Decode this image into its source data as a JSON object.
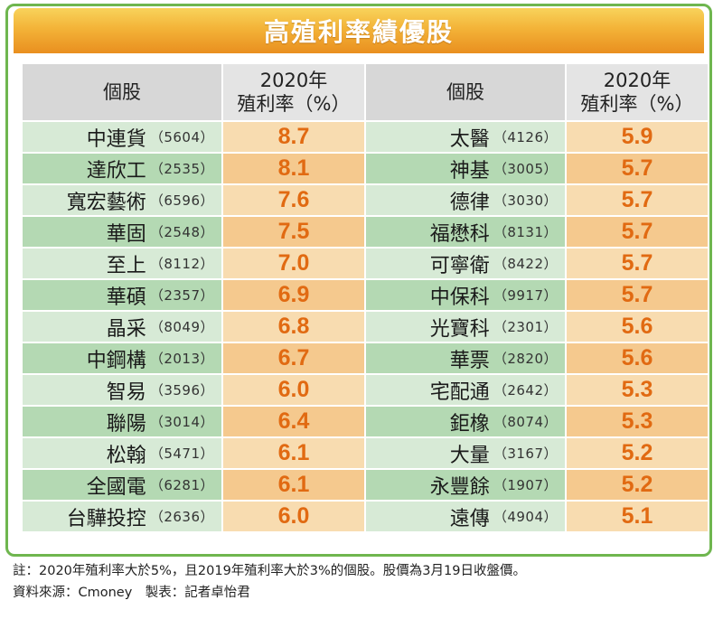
{
  "title": "高殖利率績優股",
  "headers": {
    "stock": "個股",
    "yield_line1": "2020年",
    "yield_line2": "殖利率（%）"
  },
  "left": [
    {
      "name": "中連貨",
      "code": "（5604）",
      "yield": "8.7"
    },
    {
      "name": "達欣工",
      "code": "（2535）",
      "yield": "8.1"
    },
    {
      "name": "寬宏藝術",
      "code": "（6596）",
      "yield": "7.6"
    },
    {
      "name": "華固",
      "code": "（2548）",
      "yield": "7.5"
    },
    {
      "name": "至上",
      "code": "（8112）",
      "yield": "7.0"
    },
    {
      "name": "華碩",
      "code": "（2357）",
      "yield": "6.9"
    },
    {
      "name": "晶采",
      "code": "（8049）",
      "yield": "6.8"
    },
    {
      "name": "中鋼構",
      "code": "（2013）",
      "yield": "6.7"
    },
    {
      "name": "智易",
      "code": "（3596）",
      "yield": "6.0"
    },
    {
      "name": "聯陽",
      "code": "（3014）",
      "yield": "6.4"
    },
    {
      "name": "松翰",
      "code": "（5471）",
      "yield": "6.1"
    },
    {
      "name": "全國電",
      "code": "（6281）",
      "yield": "6.1"
    },
    {
      "name": "台驊投控",
      "code": "（2636）",
      "yield": "6.0"
    }
  ],
  "right": [
    {
      "name": "太醫",
      "code": "（4126）",
      "yield": "5.9"
    },
    {
      "name": "神基",
      "code": "（3005）",
      "yield": "5.7"
    },
    {
      "name": "德律",
      "code": "（3030）",
      "yield": "5.7"
    },
    {
      "name": "福懋科",
      "code": "（8131）",
      "yield": "5.7"
    },
    {
      "name": "可寧衛",
      "code": "（8422）",
      "yield": "5.7"
    },
    {
      "name": "中保科",
      "code": "（9917）",
      "yield": "5.7"
    },
    {
      "name": "光寶科",
      "code": "（2301）",
      "yield": "5.6"
    },
    {
      "name": "華票",
      "code": "（2820）",
      "yield": "5.6"
    },
    {
      "name": "宅配通",
      "code": "（2642）",
      "yield": "5.3"
    },
    {
      "name": "鉅橡",
      "code": "（8074）",
      "yield": "5.3"
    },
    {
      "name": "大量",
      "code": "（3167）",
      "yield": "5.2"
    },
    {
      "name": "永豐餘",
      "code": "（1907）",
      "yield": "5.2"
    },
    {
      "name": "遠傳",
      "code": "（4904）",
      "yield": "5.1"
    }
  ],
  "footnote": {
    "line1": "註：2020年殖利率大於5%，且2019年殖利率大於3%的個股。股價為3月19日收盤價。",
    "line2": "資料來源：Cmoney　製表：記者卓怡君"
  },
  "colors": {
    "border": "#6fb64f",
    "title_gradient_top": "#f8d35b",
    "title_gradient_bottom": "#e98f1f",
    "value_text": "#e16a12",
    "green_light": "#d7ead6",
    "green_dark": "#b4d9b3",
    "orange_light": "#f8dcb0",
    "orange_dark": "#f5c98e"
  }
}
